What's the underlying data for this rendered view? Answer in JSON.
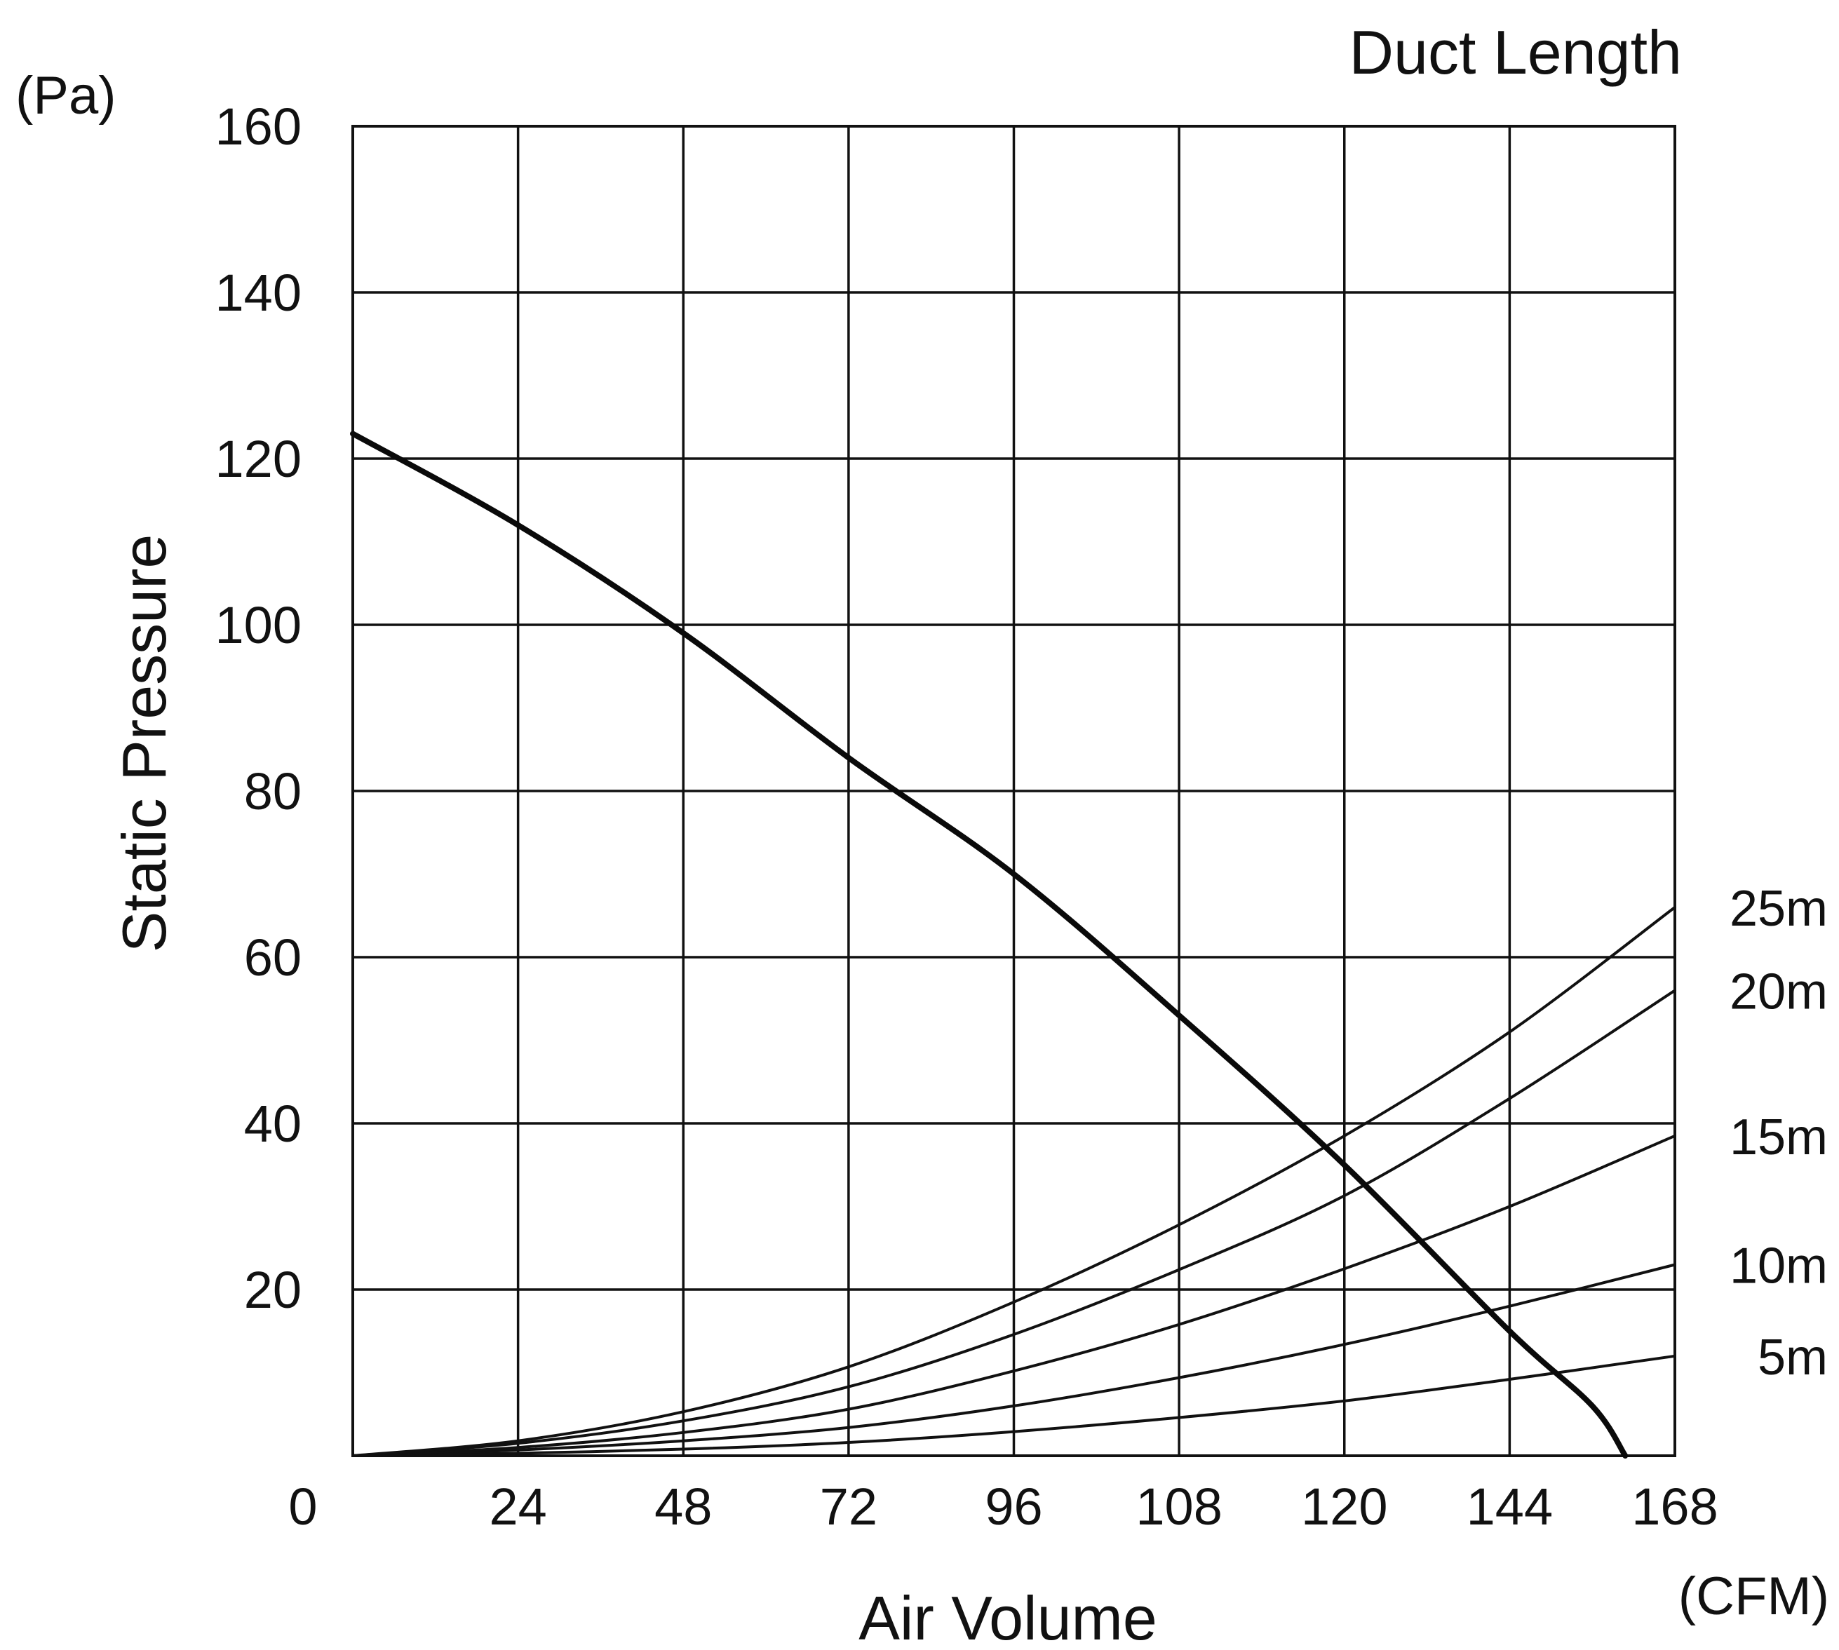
{
  "chart_data": {
    "type": "line",
    "title": "Duct Length",
    "xlabel": "Air Volume",
    "ylabel": "Static Pressure",
    "x_unit": "(CFM)",
    "y_unit": "(Pa)",
    "x_ticks": [
      "0",
      "24",
      "48",
      "72",
      "96",
      "108",
      "120",
      "144",
      "168"
    ],
    "y_ticks": [
      20,
      40,
      60,
      80,
      100,
      120,
      140,
      160
    ],
    "x_grid_positions": [
      0,
      1,
      2,
      3,
      4,
      5,
      6,
      7,
      8
    ],
    "ylim": [
      0,
      160
    ],
    "grid": true,
    "fan_curve": {
      "x_index": [
        0,
        1,
        2,
        3,
        4,
        5,
        6,
        7,
        7.5,
        7.7
      ],
      "y": [
        123,
        112,
        99,
        84,
        70,
        53,
        35,
        15,
        6,
        0
      ]
    },
    "series": [
      {
        "name": "5m",
        "x_index": [
          0,
          1,
          2,
          3,
          4,
          5,
          6,
          7,
          8
        ],
        "y": [
          0,
          0.3,
          0.8,
          1.6,
          2.9,
          4.6,
          6.6,
          9.2,
          12
        ]
      },
      {
        "name": "10m",
        "x_index": [
          0,
          1,
          2,
          3,
          4,
          5,
          6,
          7,
          8
        ],
        "y": [
          0,
          0.7,
          1.8,
          3.4,
          6,
          9.4,
          13.4,
          18,
          23
        ]
      },
      {
        "name": "15m",
        "x_index": [
          0,
          1,
          2,
          3,
          4,
          5,
          6,
          7,
          8
        ],
        "y": [
          0,
          1,
          2.8,
          5.6,
          10.2,
          15.8,
          22.5,
          30,
          38.5
        ]
      },
      {
        "name": "20m",
        "x_index": [
          0,
          1,
          2,
          3,
          4,
          5,
          6,
          7,
          8
        ],
        "y": [
          0,
          1.5,
          4.2,
          8.3,
          14.6,
          22.4,
          31.3,
          43,
          56
        ]
      },
      {
        "name": "25m",
        "x_index": [
          0,
          1,
          2,
          3,
          4,
          5,
          6,
          7,
          8
        ],
        "y": [
          0,
          1.8,
          5.3,
          10.7,
          18.5,
          27.8,
          38.5,
          51,
          66
        ]
      }
    ]
  }
}
